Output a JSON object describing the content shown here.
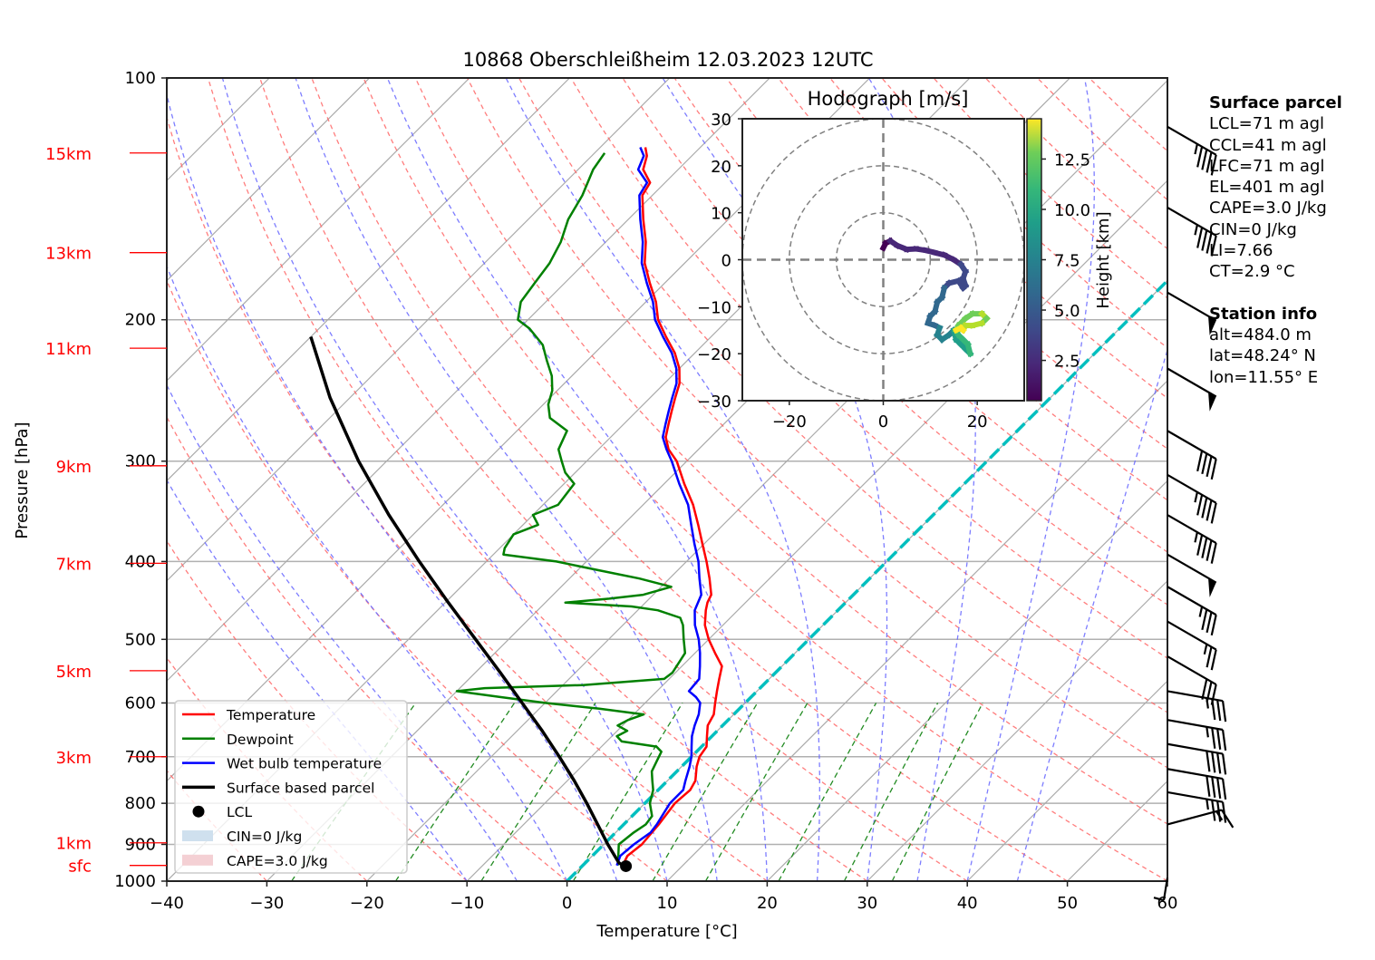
{
  "chart_data": {
    "type": "skewt",
    "title": "10868 Oberschleißheim 12.03.2023 12UTC",
    "xlabel": "Temperature [°C]",
    "ylabel": "Pressure [hPa]",
    "xlim": [
      -40,
      60
    ],
    "ylim": [
      1000,
      100
    ],
    "x_ticks": [
      -40,
      -30,
      -20,
      -10,
      0,
      10,
      20,
      30,
      40,
      50,
      60
    ],
    "x_tick_labels": [
      "−40",
      "−30",
      "−20",
      "−10",
      "0",
      "10",
      "20",
      "30",
      "40",
      "50",
      "60"
    ],
    "y_ticks": [
      100,
      200,
      300,
      400,
      500,
      600,
      700,
      800,
      900,
      1000
    ],
    "y_tick_labels": [
      "100",
      "200",
      "300",
      "400",
      "500",
      "600",
      "700",
      "800",
      "900",
      "1000"
    ],
    "height_labels": [
      {
        "label": "15km",
        "p": 124
      },
      {
        "label": "13km",
        "p": 165
      },
      {
        "label": "11km",
        "p": 217
      },
      {
        "label": "9km",
        "p": 304
      },
      {
        "label": "7km",
        "p": 402
      },
      {
        "label": "5km",
        "p": 547
      },
      {
        "label": "3km",
        "p": 700
      },
      {
        "label": "1km",
        "p": 896
      },
      {
        "label": "sfc",
        "p": 956
      }
    ],
    "series": [
      {
        "name": "Temperature",
        "color": "#ff0000",
        "points": [
          [
            956,
            4.0
          ],
          [
            930,
            3.5
          ],
          [
            900,
            3.8
          ],
          [
            850,
            3.5
          ],
          [
            800,
            3.0
          ],
          [
            770,
            3.2
          ],
          [
            750,
            2.8
          ],
          [
            720,
            1.5
          ],
          [
            700,
            0.8
          ],
          [
            680,
            0.5
          ],
          [
            660,
            -0.5
          ],
          [
            640,
            -1.5
          ],
          [
            620,
            -2.0
          ],
          [
            600,
            -3.0
          ],
          [
            580,
            -4.0
          ],
          [
            560,
            -5.0
          ],
          [
            540,
            -6.0
          ],
          [
            520,
            -8.0
          ],
          [
            500,
            -10.0
          ],
          [
            480,
            -11.8
          ],
          [
            460,
            -13.2
          ],
          [
            450,
            -13.8
          ],
          [
            440,
            -14.2
          ],
          [
            420,
            -16.0
          ],
          [
            400,
            -18.0
          ],
          [
            380,
            -20.2
          ],
          [
            360,
            -22.5
          ],
          [
            340,
            -25.0
          ],
          [
            320,
            -28.0
          ],
          [
            300,
            -31.0
          ],
          [
            290,
            -33.0
          ],
          [
            280,
            -34.5
          ],
          [
            270,
            -35.5
          ],
          [
            260,
            -36.5
          ],
          [
            250,
            -37.5
          ],
          [
            240,
            -38.5
          ],
          [
            230,
            -40.0
          ],
          [
            220,
            -42.0
          ],
          [
            210,
            -44.5
          ],
          [
            200,
            -47.0
          ],
          [
            190,
            -49.0
          ],
          [
            180,
            -51.5
          ],
          [
            170,
            -54.0
          ],
          [
            160,
            -56.0
          ],
          [
            150,
            -58.5
          ],
          [
            140,
            -61.0
          ],
          [
            135,
            -61.5
          ],
          [
            130,
            -63.5
          ],
          [
            125,
            -64.5
          ],
          [
            122,
            -65.5
          ]
        ]
      },
      {
        "name": "Dewpoint",
        "color": "#008000",
        "points": [
          [
            956,
            3.5
          ],
          [
            930,
            2.6
          ],
          [
            900,
            1.5
          ],
          [
            870,
            1.8
          ],
          [
            850,
            2.2
          ],
          [
            830,
            2.0
          ],
          [
            800,
            0.5
          ],
          [
            770,
            -0.5
          ],
          [
            750,
            -1.5
          ],
          [
            730,
            -2.5
          ],
          [
            710,
            -3.0
          ],
          [
            690,
            -3.5
          ],
          [
            680,
            -4.5
          ],
          [
            670,
            -8.5
          ],
          [
            660,
            -9.5
          ],
          [
            650,
            -9.0
          ],
          [
            640,
            -10.5
          ],
          [
            630,
            -10.0
          ],
          [
            620,
            -9.0
          ],
          [
            610,
            -14.0
          ],
          [
            600,
            -20.0
          ],
          [
            590,
            -25.0
          ],
          [
            580,
            -30.0
          ],
          [
            575,
            -27.5
          ],
          [
            570,
            -18.0
          ],
          [
            560,
            -10.5
          ],
          [
            550,
            -10.3
          ],
          [
            520,
            -11.0
          ],
          [
            500,
            -12.5
          ],
          [
            480,
            -14.0
          ],
          [
            470,
            -15.0
          ],
          [
            460,
            -18.0
          ],
          [
            455,
            -21.0
          ],
          [
            450,
            -28.0
          ],
          [
            445,
            -24.0
          ],
          [
            440,
            -21.0
          ],
          [
            430,
            -19.0
          ],
          [
            420,
            -23.0
          ],
          [
            410,
            -28.0
          ],
          [
            400,
            -33.0
          ],
          [
            392,
            -39.0
          ],
          [
            385,
            -39.5
          ],
          [
            370,
            -40.0
          ],
          [
            360,
            -38.5
          ],
          [
            350,
            -40.0
          ],
          [
            340,
            -38.5
          ],
          [
            320,
            -39.0
          ],
          [
            310,
            -41.0
          ],
          [
            300,
            -42.5
          ],
          [
            290,
            -44.0
          ],
          [
            275,
            -45.0
          ],
          [
            265,
            -48.0
          ],
          [
            255,
            -49.5
          ],
          [
            245,
            -50.5
          ],
          [
            235,
            -52.0
          ],
          [
            225,
            -54.0
          ],
          [
            215,
            -56.0
          ],
          [
            205,
            -59.0
          ],
          [
            200,
            -61.0
          ],
          [
            190,
            -62.5
          ],
          [
            180,
            -63.0
          ],
          [
            170,
            -63.5
          ],
          [
            160,
            -64.5
          ],
          [
            150,
            -66.0
          ],
          [
            140,
            -67.0
          ],
          [
            130,
            -68.5
          ],
          [
            124,
            -69.0
          ]
        ]
      },
      {
        "name": "Wet bulb temperature",
        "color": "#0000ff",
        "points": [
          [
            956,
            3.4
          ],
          [
            930,
            2.8
          ],
          [
            900,
            3.0
          ],
          [
            870,
            3.5
          ],
          [
            850,
            3.3
          ],
          [
            800,
            2.5
          ],
          [
            770,
            2.5
          ],
          [
            750,
            1.8
          ],
          [
            720,
            0.8
          ],
          [
            700,
            0.0
          ],
          [
            680,
            -1.0
          ],
          [
            660,
            -2.0
          ],
          [
            640,
            -2.8
          ],
          [
            620,
            -3.5
          ],
          [
            600,
            -4.5
          ],
          [
            590,
            -5.5
          ],
          [
            580,
            -6.8
          ],
          [
            560,
            -7.0
          ],
          [
            540,
            -8.2
          ],
          [
            520,
            -9.5
          ],
          [
            500,
            -11.0
          ],
          [
            480,
            -12.8
          ],
          [
            460,
            -14.3
          ],
          [
            440,
            -15.2
          ],
          [
            420,
            -17.0
          ],
          [
            400,
            -18.8
          ],
          [
            380,
            -21.0
          ],
          [
            360,
            -23.2
          ],
          [
            340,
            -25.5
          ],
          [
            320,
            -28.5
          ],
          [
            300,
            -31.5
          ],
          [
            290,
            -33.2
          ],
          [
            280,
            -34.8
          ],
          [
            270,
            -35.8
          ],
          [
            260,
            -36.8
          ],
          [
            250,
            -37.8
          ],
          [
            240,
            -38.8
          ],
          [
            230,
            -40.3
          ],
          [
            220,
            -42.3
          ],
          [
            210,
            -44.8
          ],
          [
            200,
            -47.3
          ],
          [
            190,
            -49.3
          ],
          [
            180,
            -51.8
          ],
          [
            170,
            -54.3
          ],
          [
            160,
            -56.3
          ],
          [
            150,
            -58.8
          ],
          [
            140,
            -61.3
          ],
          [
            135,
            -61.8
          ],
          [
            130,
            -64.0
          ],
          [
            125,
            -64.8
          ],
          [
            122,
            -66.0
          ]
        ]
      },
      {
        "name": "Surface based parcel",
        "color": "#000000",
        "points": [
          [
            956,
            4.0
          ],
          [
            948,
            3.3
          ],
          [
            900,
            0.4
          ],
          [
            850,
            -2.6
          ],
          [
            800,
            -5.8
          ],
          [
            750,
            -9.3
          ],
          [
            700,
            -13.2
          ],
          [
            650,
            -17.5
          ],
          [
            600,
            -22.3
          ],
          [
            550,
            -27.5
          ],
          [
            500,
            -33.3
          ],
          [
            450,
            -39.7
          ],
          [
            400,
            -46.7
          ],
          [
            350,
            -54.4
          ],
          [
            300,
            -62.8
          ],
          [
            250,
            -72.0
          ],
          [
            210,
            -80.0
          ]
        ]
      }
    ],
    "lcl": {
      "label": "LCL",
      "p": 948,
      "t": 3.3
    },
    "freezing_line_label": "0°C isotherm",
    "legend": {
      "position": "lower-left",
      "entries": [
        "Temperature",
        "Dewpoint",
        "Wet bulb temperature",
        "Surface based parcel",
        "LCL",
        "CIN=0 J/kg",
        "CAPE=3.0 J/kg"
      ]
    },
    "wind_barbs": [
      {
        "p": 115,
        "speed_kt": 45,
        "dir": 300
      },
      {
        "p": 145,
        "speed_kt": 45,
        "dir": 300
      },
      {
        "p": 185,
        "speed_kt": 50,
        "dir": 300
      },
      {
        "p": 230,
        "speed_kt": 50,
        "dir": 300
      },
      {
        "p": 275,
        "speed_kt": 40,
        "dir": 300
      },
      {
        "p": 312,
        "speed_kt": 45,
        "dir": 300
      },
      {
        "p": 350,
        "speed_kt": 45,
        "dir": 300
      },
      {
        "p": 392,
        "speed_kt": 50,
        "dir": 300
      },
      {
        "p": 430,
        "speed_kt": 35,
        "dir": 300
      },
      {
        "p": 475,
        "speed_kt": 25,
        "dir": 300
      },
      {
        "p": 525,
        "speed_kt": 30,
        "dir": 300
      },
      {
        "p": 580,
        "speed_kt": 35,
        "dir": 280
      },
      {
        "p": 630,
        "speed_kt": 35,
        "dir": 280
      },
      {
        "p": 675,
        "speed_kt": 40,
        "dir": 280
      },
      {
        "p": 725,
        "speed_kt": 40,
        "dir": 280
      },
      {
        "p": 775,
        "speed_kt": 35,
        "dir": 280
      },
      {
        "p": 850,
        "speed_kt": 15,
        "dir": 255
      },
      {
        "p": 990,
        "speed_kt": 5,
        "dir": 190
      }
    ],
    "hodograph": {
      "title": "Hodograph [m/s]",
      "xlim": [
        -30,
        30
      ],
      "ylim": [
        -30,
        30
      ],
      "x_ticks": [
        -20,
        0,
        20
      ],
      "x_tick_labels": [
        "−20",
        "0",
        "20"
      ],
      "y_ticks": [
        30,
        20,
        10,
        0,
        -10,
        -20,
        -30
      ],
      "y_tick_labels": [
        "30",
        "20",
        "10",
        "0",
        "−10",
        "−20",
        "−30"
      ],
      "rings": [
        10,
        20,
        30
      ],
      "colorbar_label": "Height [km]",
      "colorbar_ticks": [
        2.5,
        5.0,
        7.5,
        10.0,
        12.5
      ],
      "colorbar_tick_labels": [
        "2.5",
        "5.0",
        "7.5",
        "10.0",
        "12.5"
      ],
      "colorbar_range": [
        0.5,
        14.5
      ],
      "points": [
        [
          0,
          2.5,
          0.5
        ],
        [
          0.5,
          3.5,
          0.8
        ],
        [
          1.5,
          4,
          1.0
        ],
        [
          3,
          3,
          1.3
        ],
        [
          5,
          2.2,
          1.6
        ],
        [
          7,
          2.3,
          1.8
        ],
        [
          9,
          2,
          2.0
        ],
        [
          11,
          1.5,
          2.2
        ],
        [
          13,
          1,
          2.4
        ],
        [
          15,
          0,
          2.6
        ],
        [
          16.5,
          -1,
          2.8
        ],
        [
          17.5,
          -2.5,
          3.0
        ],
        [
          17,
          -4,
          3.2
        ],
        [
          17.5,
          -5.5,
          3.4
        ],
        [
          17,
          -6,
          3.6
        ],
        [
          16,
          -4.5,
          3.8
        ],
        [
          14,
          -5,
          4.0
        ],
        [
          13,
          -6,
          4.2
        ],
        [
          12.5,
          -8,
          4.4
        ],
        [
          11.5,
          -9,
          4.6
        ],
        [
          11,
          -11,
          4.8
        ],
        [
          10,
          -12,
          5.0
        ],
        [
          9.5,
          -13.5,
          5.3
        ],
        [
          11,
          -14,
          5.6
        ],
        [
          12,
          -14.5,
          5.9
        ],
        [
          11.5,
          -16,
          6.2
        ],
        [
          12.5,
          -17,
          6.5
        ],
        [
          14,
          -16,
          6.8
        ],
        [
          15,
          -15,
          7.2
        ],
        [
          15.5,
          -17,
          7.6
        ],
        [
          16.5,
          -18,
          8.0
        ],
        [
          17.5,
          -19,
          8.4
        ],
        [
          18.5,
          -20,
          8.8
        ],
        [
          18,
          -18,
          9.2
        ],
        [
          17,
          -17,
          9.6
        ],
        [
          16,
          -16,
          10.0
        ],
        [
          15.5,
          -15,
          10.4
        ],
        [
          16,
          -14,
          10.8
        ],
        [
          17.5,
          -12.5,
          11.2
        ],
        [
          19,
          -11.5,
          11.6
        ],
        [
          21,
          -11.5,
          12.0
        ],
        [
          22,
          -12.5,
          12.4
        ],
        [
          21,
          -13.5,
          12.0
        ],
        [
          19,
          -14,
          12.5
        ],
        [
          17.5,
          -14,
          13.0
        ],
        [
          17,
          -15,
          13.5
        ],
        [
          16.5,
          -14.5,
          14.0
        ],
        [
          15.5,
          -15,
          14.3
        ]
      ]
    }
  },
  "info": {
    "surface_header": "Surface parcel",
    "surface_lines": [
      "LCL=71 m agl",
      "CCL=41 m agl",
      "LFC=71 m agl",
      "EL=401 m agl",
      "CAPE=3.0 J/kg",
      "CIN=0 J/kg",
      "LI=7.66",
      "CT=2.9 °C"
    ],
    "station_header": "Station info",
    "station_lines": [
      "alt=484.0 m",
      "lat=48.24° N",
      "lon=11.55° E"
    ]
  }
}
